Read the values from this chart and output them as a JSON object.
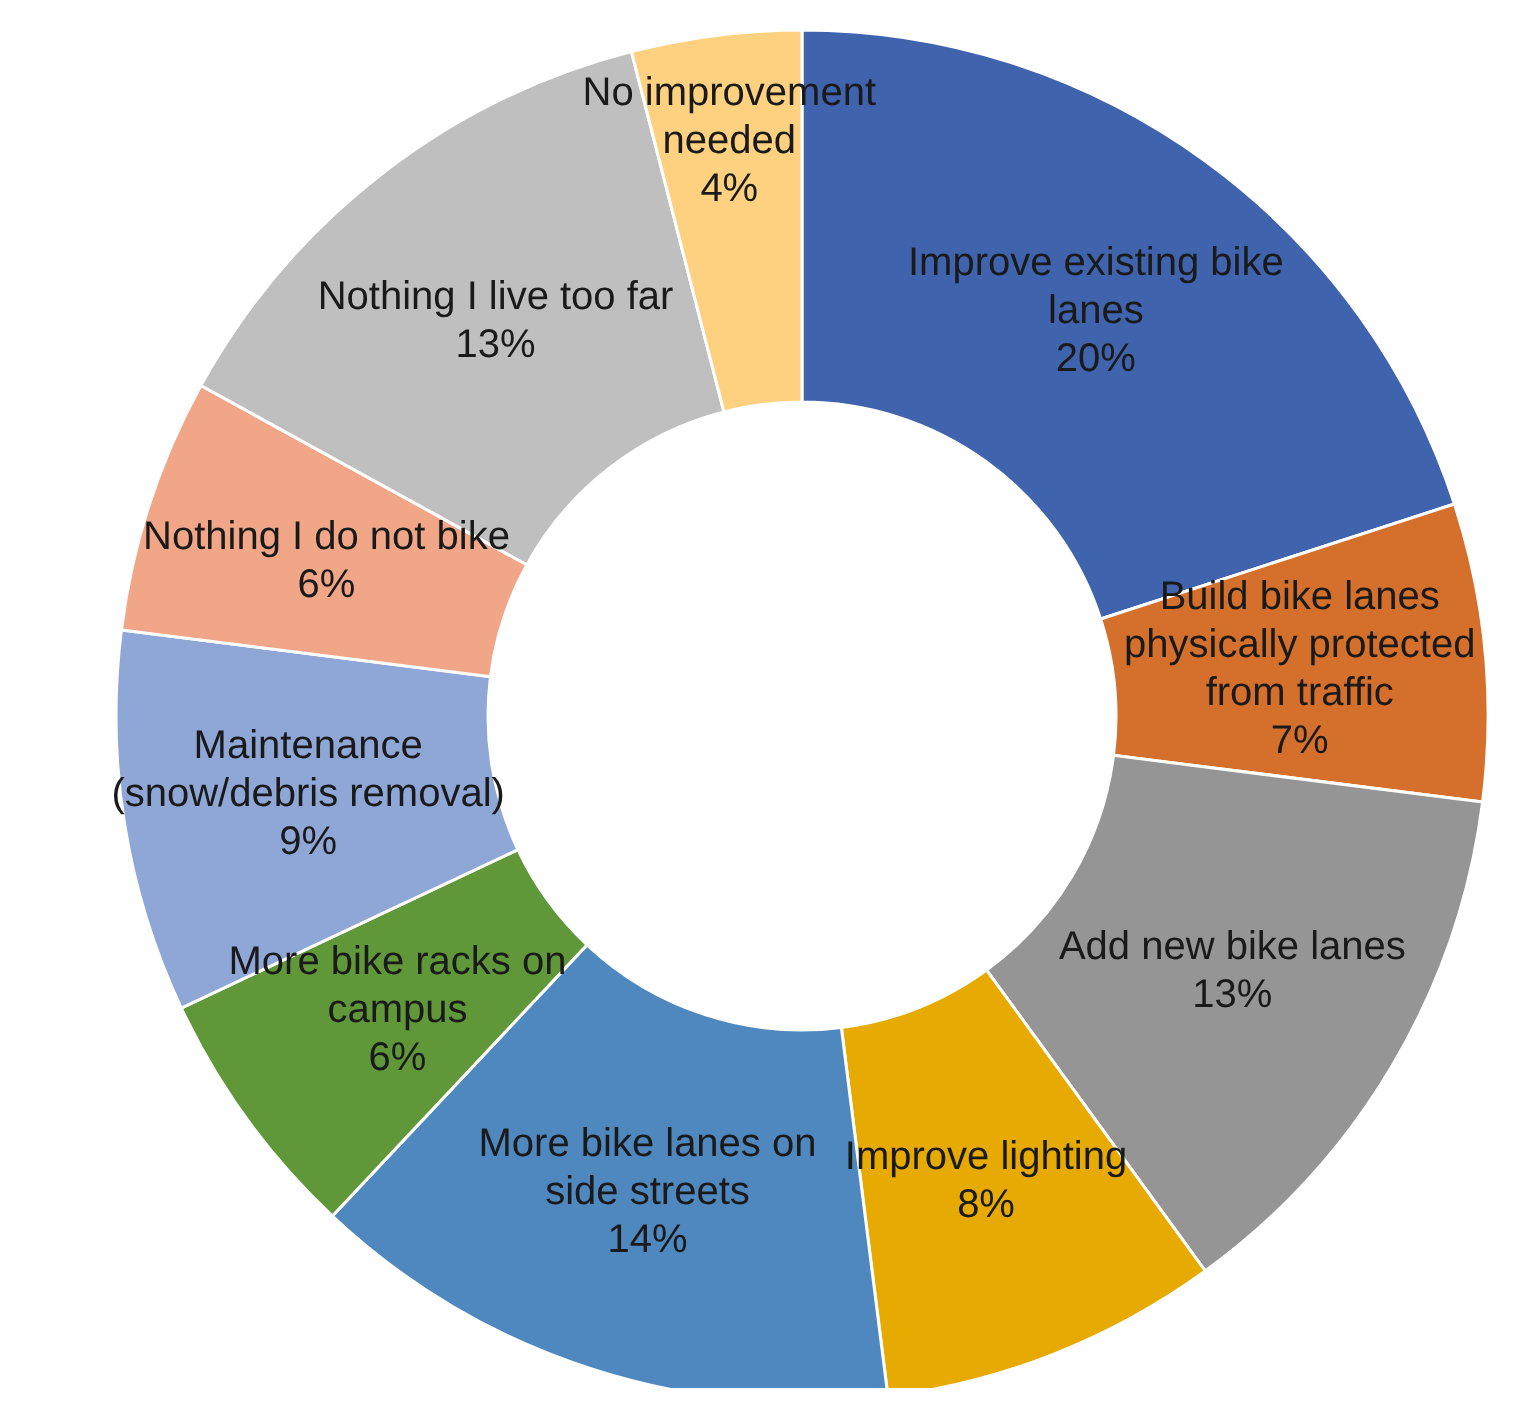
{
  "chart_data": {
    "type": "donut",
    "categories": [
      "Improve existing bike lanes",
      "Build bike lanes physically protected from traffic",
      "Add new bike lanes",
      "Improve lighting",
      "More bike lanes on side streets",
      "More bike racks on campus",
      "Maintenance (snow/debris removal)",
      "Nothing I do not bike",
      "Nothing I live too far",
      "No improvement needed"
    ],
    "values": [
      20,
      7,
      13,
      8,
      14,
      6,
      9,
      6,
      13,
      4
    ],
    "colors": [
      "#3f64ad",
      "#d4702b",
      "#959595",
      "#e6aa00",
      "#4f87bf",
      "#5f9739",
      "#8fa7d6",
      "#f1a688",
      "#bfbfbf",
      "#fdd17f"
    ],
    "value_labels": [
      "20%",
      "7%",
      "13%",
      "8%",
      "14%",
      "6%",
      "9%",
      "6%",
      "13%",
      "4%"
    ]
  }
}
